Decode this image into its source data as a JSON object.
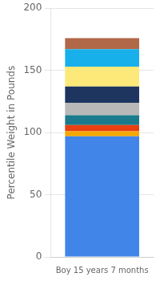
{
  "chart_data": {
    "type": "bar",
    "stacked": true,
    "xlabel": "",
    "ylabel": "Percentile Weight in Pounds",
    "categories": [
      "Boy 15 years 7 months"
    ],
    "series": [
      {
        "color": "#4285e8",
        "values": [
          97
        ]
      },
      {
        "color": "#f5a800",
        "values": [
          4
        ]
      },
      {
        "color": "#e84010",
        "values": [
          5
        ]
      },
      {
        "color": "#1b7a8c",
        "values": [
          8
        ]
      },
      {
        "color": "#b8b8b8",
        "values": [
          10
        ]
      },
      {
        "color": "#1e3560",
        "values": [
          13
        ]
      },
      {
        "color": "#fde87a",
        "values": [
          16
        ]
      },
      {
        "color": "#18b0ea",
        "values": [
          14
        ]
      },
      {
        "color": "#b06848",
        "values": [
          9
        ]
      }
    ],
    "ylim": [
      0,
      200
    ],
    "yticks": [
      0,
      50,
      100,
      150,
      200
    ],
    "grid": true
  }
}
